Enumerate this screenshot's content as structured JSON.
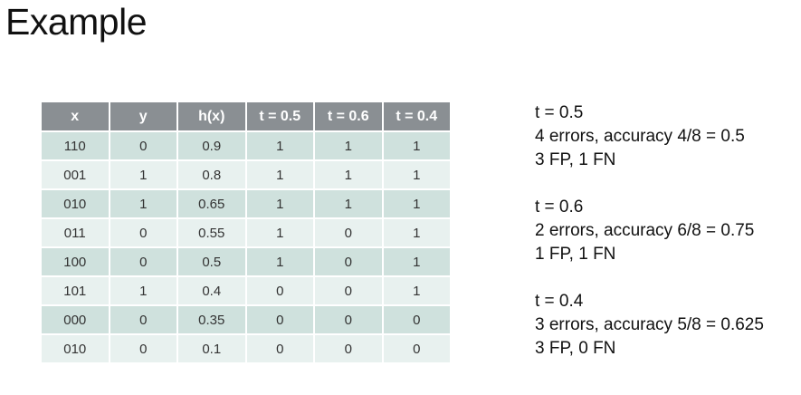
{
  "title": "Example",
  "table": {
    "headers": [
      "x",
      "y",
      "h(x)",
      "t = 0.5",
      "t = 0.6",
      "t = 0.4"
    ],
    "rows": [
      [
        "110",
        "0",
        "0.9",
        "1",
        "1",
        "1"
      ],
      [
        "001",
        "1",
        "0.8",
        "1",
        "1",
        "1"
      ],
      [
        "010",
        "1",
        "0.65",
        "1",
        "1",
        "1"
      ],
      [
        "011",
        "0",
        "0.55",
        "1",
        "0",
        "1"
      ],
      [
        "100",
        "0",
        "0.5",
        "1",
        "0",
        "1"
      ],
      [
        "101",
        "1",
        "0.4",
        "0",
        "0",
        "1"
      ],
      [
        "000",
        "0",
        "0.35",
        "0",
        "0",
        "0"
      ],
      [
        "010",
        "0",
        "0.1",
        "0",
        "0",
        "0"
      ]
    ]
  },
  "notes": [
    [
      "t = 0.5",
      "4 errors, accuracy 4/8 = 0.5",
      "3 FP, 1 FN"
    ],
    [
      "t = 0.6",
      "2 errors, accuracy 6/8 = 0.75",
      "1 FP, 1 FN"
    ],
    [
      "t = 0.4",
      "3 errors, accuracy 5/8 = 0.625",
      "3 FP, 0 FN"
    ]
  ]
}
